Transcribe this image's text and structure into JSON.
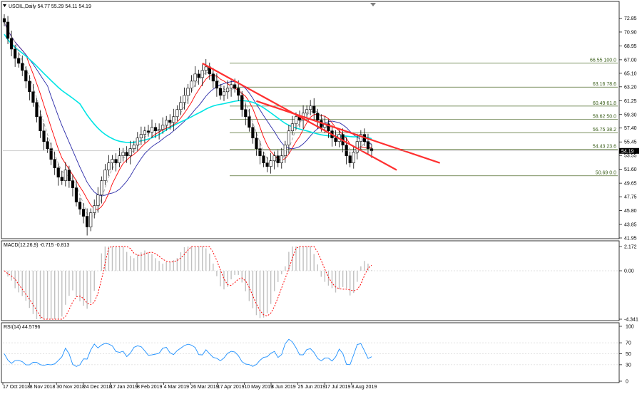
{
  "header": {
    "symbol_line": "USOIL,Daily  54.77 55.29 54.11 54.19"
  },
  "chart_data": [
    {
      "type": "candlestick",
      "panel": "price",
      "title": "USOIL,Daily  54.77 55.29 54.11 54.19",
      "ylim": [
        41.95,
        74.0
      ],
      "yticks": [
        72.85,
        70.9,
        68.95,
        67.0,
        65.1,
        63.2,
        61.25,
        59.3,
        57.4,
        55.45,
        53.55,
        51.6,
        49.65,
        47.75,
        45.8,
        43.85,
        41.95
      ],
      "current_price": "54.19",
      "close_series_approx": [
        72.3,
        70.0,
        68.5,
        67.2,
        66.5,
        65.5,
        64.0,
        62.5,
        61.0,
        59.0,
        57.0,
        55.5,
        54.5,
        53.0,
        51.8,
        50.5,
        50.0,
        51.5,
        50.0,
        49.0,
        47.0,
        46.0,
        45.0,
        43.5,
        45.5,
        46.5,
        48.0,
        50.0,
        51.5,
        52.5,
        53.0,
        52.5,
        53.5,
        54.0,
        53.5,
        54.5,
        55.0,
        56.0,
        56.5,
        57.0,
        56.8,
        57.5,
        57.0,
        57.2,
        57.8,
        58.5,
        58.2,
        59.0,
        60.0,
        61.0,
        62.0,
        63.0,
        64.0,
        65.0,
        64.5,
        65.5,
        66.0,
        65.0,
        64.0,
        63.0,
        62.0,
        62.5,
        63.0,
        63.5,
        63.0,
        62.0,
        60.0,
        59.0,
        57.5,
        56.0,
        54.5,
        53.5,
        52.5,
        52.0,
        52.8,
        53.5,
        52.5,
        53.5,
        55.0,
        57.0,
        58.0,
        59.0,
        58.5,
        59.5,
        60.0,
        60.5,
        59.5,
        58.5,
        57.5,
        58.0,
        57.0,
        56.0,
        55.5,
        56.5,
        55.0,
        53.5,
        52.5,
        54.0,
        55.5,
        56.5,
        55.5,
        54.5,
        54.19
      ],
      "moving_averages": [
        {
          "color": "#ff0000",
          "name": ""
        },
        {
          "color": "#2a2aa8",
          "name": ""
        },
        {
          "color": "#00e5e5",
          "name": ""
        },
        {
          "color": "#a0a0a0",
          "name": ""
        }
      ],
      "trendlines": [
        {
          "color": "#ff3030",
          "from": {
            "date_index": 55,
            "price": 66.5
          },
          "to": {
            "date_index": 103,
            "price": 51.5
          }
        },
        {
          "color": "#ff3030",
          "from": {
            "date_index": 70,
            "price": 61.2
          },
          "to": {
            "date_index": 115,
            "price": 52.5
          }
        }
      ],
      "fibonacci_levels": [
        {
          "price": "66.55",
          "ratio": "100.0"
        },
        {
          "price": "63.16",
          "ratio": "78.6"
        },
        {
          "price": "60.49",
          "ratio": "61.8"
        },
        {
          "price": "58.62",
          "ratio": "50.0"
        },
        {
          "price": "56.75",
          "ratio": "38.2"
        },
        {
          "price": "54.43",
          "ratio": "23.6"
        },
        {
          "price": "50.69",
          "ratio": "0.0"
        }
      ],
      "x_tick_labels": [
        "17 Oct 2018",
        "8 Nov 2018",
        "30 Nov 2018",
        "24 Dec 2018",
        "17 Jan 2019",
        "8 Feb 2019",
        "4 Mar 2019",
        "26 Mar 2019",
        "17 Apr 2019",
        "10 May 2019",
        "3 Jun 2019",
        "25 Jun 2019",
        "17 Jul 2019",
        "8 Aug 2019"
      ]
    },
    {
      "type": "histogram",
      "panel": "macd",
      "title": "MACD(12,26,9) -0.715 -0.813",
      "yticks": [
        "2.172",
        "0.00",
        "-4.341"
      ],
      "ylim": [
        -4.341,
        2.172
      ],
      "signal_color": "#ff0000",
      "histogram_color": "#c0c0c0"
    },
    {
      "type": "line",
      "panel": "rsi",
      "title": "RSI(14) 44.5796",
      "yticks": [
        "100",
        "70",
        "50",
        "30",
        "0"
      ],
      "ylim": [
        0,
        100
      ],
      "line_color": "#1e90ff",
      "last_value": 44.5796
    }
  ]
}
